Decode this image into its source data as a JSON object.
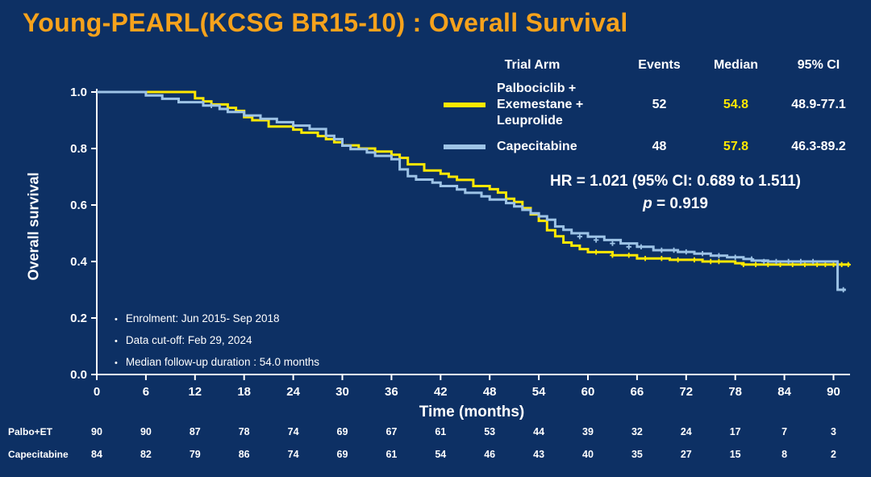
{
  "slide": {
    "title": "Young-PEARL(KCSG BR15-10) : Overall Survival",
    "palette": {
      "background": "#0d3064",
      "title_orange": "#f6a21c",
      "curve_yellow": "#ffe800",
      "curve_blue": "#9dc3e6",
      "text_white": "#ffffff"
    }
  },
  "legend": {
    "headers": [
      "Trial Arm",
      "Events",
      "Median",
      "95% CI"
    ],
    "rows": [
      {
        "arm_lines": [
          "Palbociclib +",
          "Exemestane +",
          "Leuprolide"
        ],
        "color": "#ffe800",
        "events": "52",
        "median": "54.8",
        "ci": "48.9-77.1"
      },
      {
        "arm_lines": [
          "Capecitabine"
        ],
        "color": "#9dc3e6",
        "events": "48",
        "median": "57.8",
        "ci": "46.3-89.2"
      }
    ]
  },
  "stats": {
    "hr_line": "HR = 1.021 (95% CI: 0.689 to 1.511)",
    "p_label": "p",
    "p_value": " = 0.919"
  },
  "notes": [
    "Enrolment: Jun 2015- Sep 2018",
    "Data cut-off: Feb 29, 2024",
    "Median follow-up duration : 54.0 months"
  ],
  "chart_data": {
    "type": "line",
    "subtype": "kaplan-meier-step",
    "title": "Overall Survival",
    "xlabel": "Time (months)",
    "ylabel": "Overall survival",
    "xlim": [
      0,
      93
    ],
    "ylim": [
      0,
      1.0
    ],
    "grid": false,
    "legend_position": "top-right",
    "xticks": [
      0,
      6,
      12,
      18,
      24,
      30,
      36,
      42,
      48,
      54,
      60,
      66,
      72,
      78,
      84,
      90
    ],
    "yticks": [
      0.0,
      0.2,
      0.4,
      0.6,
      0.8,
      1.0
    ],
    "series": [
      {
        "name": "Palbociclib + Exemestane + Leuprolide",
        "color": "#ffe800",
        "events": 52,
        "median_months": 54.8,
        "ci_95": "48.9-77.1",
        "points": [
          [
            0,
            1.0
          ],
          [
            11,
            1.0
          ],
          [
            12,
            0.978
          ],
          [
            13,
            0.967
          ],
          [
            14,
            0.956
          ],
          [
            16,
            0.944
          ],
          [
            17,
            0.933
          ],
          [
            18,
            0.911
          ],
          [
            19,
            0.9
          ],
          [
            21,
            0.878
          ],
          [
            24,
            0.867
          ],
          [
            25,
            0.856
          ],
          [
            27,
            0.844
          ],
          [
            28,
            0.833
          ],
          [
            29,
            0.822
          ],
          [
            30,
            0.811
          ],
          [
            32,
            0.8
          ],
          [
            34,
            0.789
          ],
          [
            36,
            0.778
          ],
          [
            37,
            0.767
          ],
          [
            38,
            0.744
          ],
          [
            40,
            0.722
          ],
          [
            42,
            0.711
          ],
          [
            43,
            0.7
          ],
          [
            44,
            0.689
          ],
          [
            46,
            0.667
          ],
          [
            48,
            0.656
          ],
          [
            49,
            0.644
          ],
          [
            50,
            0.622
          ],
          [
            51,
            0.611
          ],
          [
            52,
            0.589
          ],
          [
            53,
            0.567
          ],
          [
            54,
            0.544
          ],
          [
            55,
            0.511
          ],
          [
            56,
            0.489
          ],
          [
            57,
            0.467
          ],
          [
            58,
            0.456
          ],
          [
            59,
            0.444
          ],
          [
            60,
            0.433
          ],
          [
            63,
            0.422
          ],
          [
            66,
            0.411
          ],
          [
            70,
            0.406
          ],
          [
            74,
            0.4
          ],
          [
            78,
            0.394
          ],
          [
            79,
            0.389
          ],
          [
            92,
            0.389
          ]
        ],
        "censor_marks": [
          [
            61,
            0.433
          ],
          [
            63,
            0.422
          ],
          [
            65,
            0.422
          ],
          [
            67,
            0.411
          ],
          [
            69,
            0.411
          ],
          [
            71,
            0.406
          ],
          [
            73,
            0.406
          ],
          [
            75,
            0.4
          ],
          [
            76,
            0.4
          ],
          [
            79,
            0.389
          ],
          [
            80.5,
            0.389
          ],
          [
            82,
            0.389
          ],
          [
            83.5,
            0.389
          ],
          [
            85,
            0.389
          ],
          [
            86.5,
            0.389
          ],
          [
            88,
            0.389
          ],
          [
            89,
            0.389
          ],
          [
            90,
            0.389
          ],
          [
            91,
            0.389
          ],
          [
            91.8,
            0.389
          ]
        ]
      },
      {
        "name": "Capecitabine",
        "color": "#9dc3e6",
        "events": 48,
        "median_months": 57.8,
        "ci_95": "46.3-89.2",
        "points": [
          [
            0,
            1.0
          ],
          [
            5,
            1.0
          ],
          [
            6,
            0.988
          ],
          [
            8,
            0.976
          ],
          [
            10,
            0.964
          ],
          [
            13,
            0.952
          ],
          [
            15,
            0.94
          ],
          [
            16,
            0.929
          ],
          [
            18,
            0.917
          ],
          [
            20,
            0.905
          ],
          [
            22,
            0.893
          ],
          [
            24,
            0.881
          ],
          [
            26,
            0.869
          ],
          [
            28,
            0.845
          ],
          [
            29,
            0.833
          ],
          [
            30,
            0.81
          ],
          [
            31,
            0.798
          ],
          [
            33,
            0.786
          ],
          [
            34,
            0.774
          ],
          [
            36,
            0.762
          ],
          [
            37,
            0.726
          ],
          [
            38,
            0.702
          ],
          [
            39,
            0.69
          ],
          [
            41,
            0.679
          ],
          [
            42,
            0.667
          ],
          [
            44,
            0.655
          ],
          [
            45,
            0.643
          ],
          [
            47,
            0.631
          ],
          [
            48,
            0.619
          ],
          [
            50,
            0.607
          ],
          [
            51,
            0.595
          ],
          [
            52,
            0.583
          ],
          [
            53,
            0.571
          ],
          [
            54,
            0.56
          ],
          [
            55,
            0.548
          ],
          [
            56,
            0.524
          ],
          [
            57,
            0.512
          ],
          [
            58,
            0.5
          ],
          [
            60,
            0.488
          ],
          [
            62,
            0.476
          ],
          [
            64,
            0.464
          ],
          [
            66,
            0.452
          ],
          [
            68,
            0.44
          ],
          [
            71,
            0.434
          ],
          [
            73,
            0.428
          ],
          [
            75,
            0.421
          ],
          [
            77,
            0.415
          ],
          [
            79,
            0.409
          ],
          [
            80,
            0.403
          ],
          [
            82,
            0.4
          ],
          [
            90,
            0.4
          ],
          [
            90.5,
            0.3
          ],
          [
            91.5,
            0.3
          ]
        ],
        "censor_marks": [
          [
            14,
            0.952
          ],
          [
            59,
            0.488
          ],
          [
            61,
            0.476
          ],
          [
            63,
            0.464
          ],
          [
            65,
            0.452
          ],
          [
            66.5,
            0.452
          ],
          [
            69,
            0.44
          ],
          [
            70.5,
            0.44
          ],
          [
            72,
            0.434
          ],
          [
            74,
            0.428
          ],
          [
            76,
            0.421
          ],
          [
            78,
            0.415
          ],
          [
            80,
            0.409
          ],
          [
            81.5,
            0.4
          ],
          [
            83,
            0.4
          ],
          [
            84.5,
            0.4
          ],
          [
            86,
            0.4
          ],
          [
            87.5,
            0.4
          ],
          [
            91.2,
            0.3
          ]
        ]
      }
    ]
  },
  "at_risk": {
    "rows": [
      {
        "label": "Palbo+ET",
        "values": [
          90,
          90,
          87,
          78,
          74,
          69,
          67,
          61,
          53,
          44,
          39,
          32,
          24,
          17,
          7,
          3
        ]
      },
      {
        "label": "Capecitabine",
        "values": [
          84,
          82,
          79,
          86,
          74,
          69,
          61,
          54,
          46,
          43,
          40,
          35,
          27,
          15,
          8,
          2
        ]
      }
    ]
  }
}
